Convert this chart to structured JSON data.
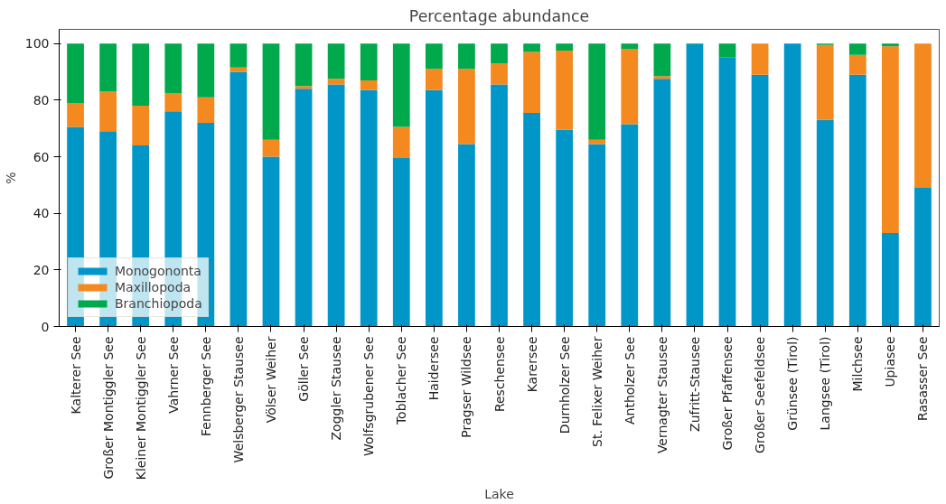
{
  "chart_data": {
    "type": "bar",
    "stacked": true,
    "title": "Percentage abundance",
    "xlabel": "Lake",
    "ylabel": "%",
    "categories": [
      "Kalterer See",
      "Großer Montiggler See",
      "Kleiner Montiggler See",
      "Vahrner See",
      "Fennberger See",
      "Welsberger Stausee",
      "Völser Weiher",
      "Göller See",
      "Zoggler Stausee",
      "Wolfsgrubener See",
      "Toblacher See",
      "Haidersee",
      "Pragser Wildsee",
      "Reschensee",
      "Karersee",
      "Durnholzer See",
      "St. Felixer Weiher",
      "Antholzer See",
      "Vernagter Stausee",
      "Zufritt-Stausee",
      "Großer Pfaffensee",
      "Großer Seefeldsee",
      "Grünsee (Tirol)",
      "Langsee (Tirol)",
      "Milchsee",
      "Upiasee",
      "Rasasser See"
    ],
    "series": [
      {
        "name": "Monogononta",
        "color": "#0096c8",
        "values": [
          70.5,
          69,
          64,
          76,
          72,
          90,
          60,
          84,
          85.5,
          83.5,
          59.5,
          83.5,
          64.5,
          85.5,
          75.5,
          69.5,
          64.5,
          71.5,
          87.5,
          99.7,
          95,
          89,
          100,
          73,
          89,
          33,
          49
        ]
      },
      {
        "name": "Maxillopoda",
        "color": "#f4891f",
        "values": [
          8.5,
          14,
          14,
          6.5,
          9,
          1.5,
          6,
          1,
          2,
          3.5,
          11,
          7.5,
          26.5,
          7.5,
          21.5,
          28,
          1.5,
          26.5,
          1,
          0,
          0,
          11,
          0,
          26.5,
          7,
          66,
          51
        ]
      },
      {
        "name": "Branchiopoda",
        "color": "#00a94c",
        "values": [
          21,
          17,
          22,
          17.5,
          19,
          8.5,
          34,
          15,
          12.5,
          13,
          29.5,
          9,
          9,
          7,
          3,
          2.5,
          34,
          2,
          11.5,
          0.3,
          5,
          0,
          0,
          0.5,
          4,
          1,
          0
        ]
      }
    ],
    "ylim": [
      0,
      105
    ],
    "yticks": [
      0,
      20,
      40,
      60,
      80,
      100
    ],
    "grid": false,
    "legend": "bottom left"
  }
}
